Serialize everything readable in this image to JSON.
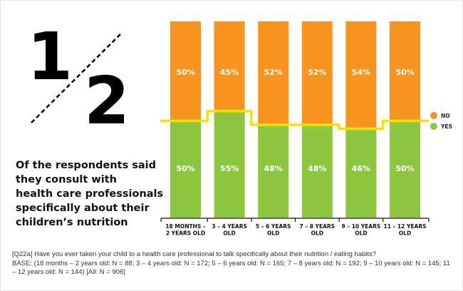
{
  "headline": {
    "fraction_numerator": "1",
    "fraction_denominator": "2",
    "lines": [
      "Of the respondents said",
      "they consult with",
      "health care professionals",
      "specifically about their",
      "children’s nutrition"
    ]
  },
  "footnote": {
    "question": "[Q22a] Have you ever taken your child to a health care professional to talk specifically about their nutrition / eating habits?",
    "base": "BASE: (18 months – 2 years old: N = 88; 3 – 4 years old: N = 172; 5 – 6 years old: N = 165; 7 – 8 years old: N = 192; 9 – 10 years old: N = 145; 11 – 12 years old: N = 144) [All: N = 906]"
  },
  "colors": {
    "no": "#f7941d",
    "yes": "#8dc63f",
    "line": "#ffdd00",
    "axis": "#111111"
  },
  "chart_data": {
    "type": "bar",
    "stacked": true,
    "normalized": true,
    "title": "",
    "xlabel": "",
    "ylabel": "",
    "ylim": [
      0,
      100
    ],
    "grid": false,
    "legend_position": "right",
    "categories": [
      [
        "18 MONTHS –",
        "2 YEARS OLD"
      ],
      [
        "3 – 4 YEARS",
        "OLD"
      ],
      [
        "5 – 6 YEARS",
        "OLD"
      ],
      [
        "7 – 8 YEARS",
        "OLD"
      ],
      [
        "9 – 10 YEARS",
        "OLD"
      ],
      [
        "11 – 12 YEARS",
        "OLD"
      ]
    ],
    "series": [
      {
        "name": "YES",
        "values": [
          50,
          55,
          48,
          48,
          46,
          50
        ],
        "labels": [
          "50%",
          "55%",
          "48%",
          "48%",
          "46%",
          "50%"
        ]
      },
      {
        "name": "NO",
        "values": [
          50,
          45,
          52,
          52,
          54,
          50
        ],
        "labels": [
          "50%",
          "45%",
          "52%",
          "52%",
          "54%",
          "50%"
        ]
      }
    ],
    "overlay_line": {
      "type": "step",
      "description": "yes/no boundary",
      "values": [
        50,
        55,
        48,
        48,
        46,
        50
      ]
    },
    "legend": [
      "NO",
      "YES"
    ]
  }
}
